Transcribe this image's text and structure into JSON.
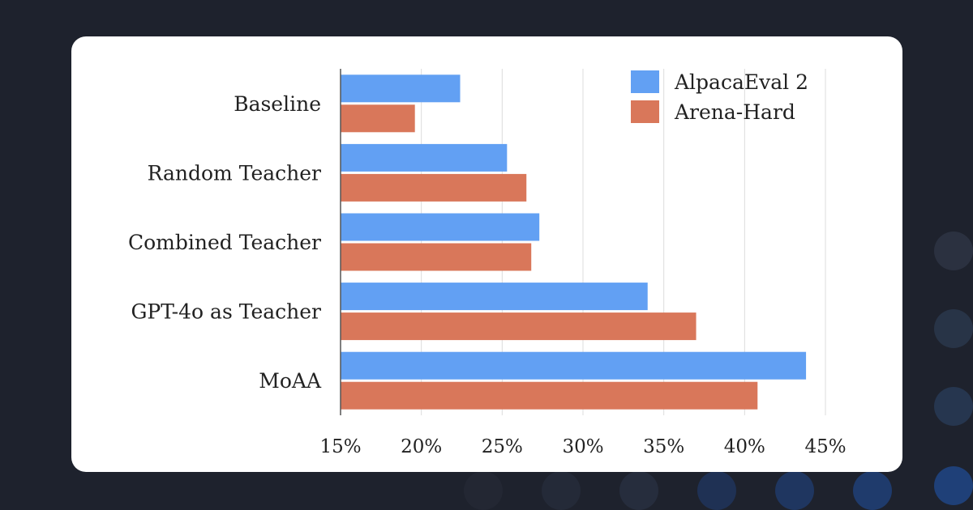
{
  "chart_data": {
    "type": "bar",
    "orientation": "horizontal",
    "categories": [
      "Baseline",
      "Random Teacher",
      "Combined Teacher",
      "GPT-4o as Teacher",
      "MoAA"
    ],
    "series": [
      {
        "name": "AlpacaEval 2",
        "color": "#62a0f3",
        "values": [
          22.4,
          25.3,
          27.3,
          34.0,
          43.8
        ]
      },
      {
        "name": "Arena-Hard",
        "color": "#d9775a",
        "values": [
          19.6,
          26.5,
          26.8,
          37.0,
          40.8
        ]
      }
    ],
    "xlim": [
      15,
      45
    ],
    "xticks": [
      "15%",
      "20%",
      "25%",
      "30%",
      "35%",
      "40%",
      "45%"
    ],
    "xtick_values": [
      15,
      20,
      25,
      30,
      35,
      40,
      45
    ],
    "grid": "vertical",
    "legend_position": "top-right"
  },
  "colors": {
    "background": "#1e222d",
    "card": "#ffffff",
    "grid": "#dcdcdc",
    "axis": "#555555"
  }
}
